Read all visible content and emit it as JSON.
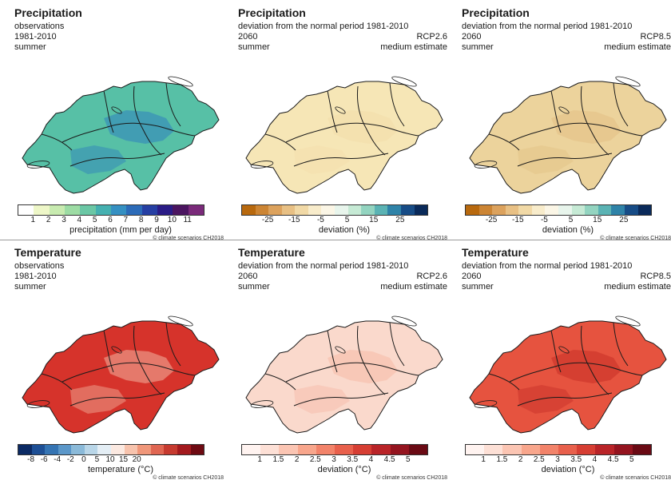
{
  "panels": [
    {
      "title": "Precipitation",
      "sub": "observations",
      "l2": "1981-2010",
      "l3": "summer",
      "r2": "",
      "r3": "",
      "ticks": [
        "1",
        "2",
        "3",
        "4",
        "5",
        "6",
        "7",
        "8",
        "9",
        "10",
        "11"
      ],
      "unit": "precipitation  (mm per day)",
      "credit": "© climate scenarios CH2018",
      "colors": [
        "#ffffff",
        "#eef7c8",
        "#c8ebb0",
        "#9ddca4",
        "#6bc7a5",
        "#45b0b0",
        "#3590c2",
        "#2c6bb8",
        "#263fa3",
        "#2a1c86",
        "#4b1560",
        "#7a2a7a"
      ]
    },
    {
      "title": "Precipitation",
      "sub": "deviation from the normal period 1981-2010",
      "l2": "2060",
      "l3": "summer",
      "r2": "RCP2.6",
      "r3": "medium estimate",
      "ticks": [
        "-25",
        "-15",
        "-5",
        "5",
        "15",
        "25"
      ],
      "unit": "deviation (%)",
      "credit": "© climate scenarios CH2018",
      "colors": [
        "#b8690e",
        "#cc8534",
        "#dca25d",
        "#e8c084",
        "#f1d9a6",
        "#f8eccb",
        "#fbf6e6",
        "#e8f5ec",
        "#c6ead5",
        "#93d4c0",
        "#5bb3b4",
        "#2f83a8",
        "#174c86",
        "#0a2a5a"
      ]
    },
    {
      "title": "Precipitation",
      "sub": "deviation from the normal period 1981-2010",
      "l2": "2060",
      "l3": "summer",
      "r2": "RCP8.5",
      "r3": "medium estimate",
      "ticks": [
        "-25",
        "-15",
        "-5",
        "5",
        "15",
        "25"
      ],
      "unit": "deviation (%)",
      "credit": "© climate scenarios CH2018",
      "colors": [
        "#b8690e",
        "#cc8534",
        "#dca25d",
        "#e8c084",
        "#f1d9a6",
        "#f8eccb",
        "#fbf6e6",
        "#e8f5ec",
        "#c6ead5",
        "#93d4c0",
        "#5bb3b4",
        "#2f83a8",
        "#174c86",
        "#0a2a5a"
      ]
    },
    {
      "title": "Temperature",
      "sub": "observations",
      "l2": "1981-2010",
      "l3": "summer",
      "r2": "",
      "r3": "",
      "ticks": [
        "-8",
        "-6",
        "-4",
        "-2",
        "0",
        "5",
        "10",
        "15",
        "20"
      ],
      "unit": "temperature  (°C)",
      "credit": "© climate scenarios CH2018",
      "colors": [
        "#0b2a64",
        "#1d4f95",
        "#3574b3",
        "#5b97c9",
        "#8bbad9",
        "#b9d6e8",
        "#e4eef5",
        "#fbe9e1",
        "#f7c3ad",
        "#f0977a",
        "#e06652",
        "#c63a2f",
        "#a31a1e",
        "#6e0a12"
      ]
    },
    {
      "title": "Temperature",
      "sub": "deviation from the normal period 1981-2010",
      "l2": "2060",
      "l3": "summer",
      "r2": "RCP2.6",
      "r3": "medium estimate",
      "ticks": [
        "1",
        "1.5",
        "2",
        "2.5",
        "3",
        "3.5",
        "4",
        "4.5",
        "5"
      ],
      "unit": "deviation  (°C)",
      "credit": "© climate scenarios CH2018",
      "colors": [
        "#fff3f0",
        "#fde0d6",
        "#fbc5b3",
        "#f8a68c",
        "#f2836a",
        "#e8604c",
        "#d63e33",
        "#b92428",
        "#94141f",
        "#6a0a14"
      ]
    },
    {
      "title": "Temperature",
      "sub": "deviation from the normal period 1981-2010",
      "l2": "2060",
      "l3": "summer",
      "r2": "RCP8.5",
      "r3": "medium estimate",
      "ticks": [
        "1",
        "1.5",
        "2",
        "2.5",
        "3",
        "3.5",
        "4",
        "4.5",
        "5"
      ],
      "unit": "deviation  (°C)",
      "credit": "© climate scenarios CH2018",
      "colors": [
        "#fff3f0",
        "#fde0d6",
        "#fbc5b3",
        "#f8a68c",
        "#f2836a",
        "#e8604c",
        "#d63e33",
        "#b92428",
        "#94141f",
        "#6a0a14"
      ]
    }
  ],
  "map_fills": [
    "#57c0a6",
    "#f6e6b6",
    "#ecd39c",
    "#d6332b",
    "#fad9cc",
    "#e6533f"
  ],
  "map_accents": [
    "#2f7fbd",
    "#f3ddaa",
    "#e3c085",
    "#f2b3a0",
    "#f6b9a6",
    "#c62f27"
  ]
}
